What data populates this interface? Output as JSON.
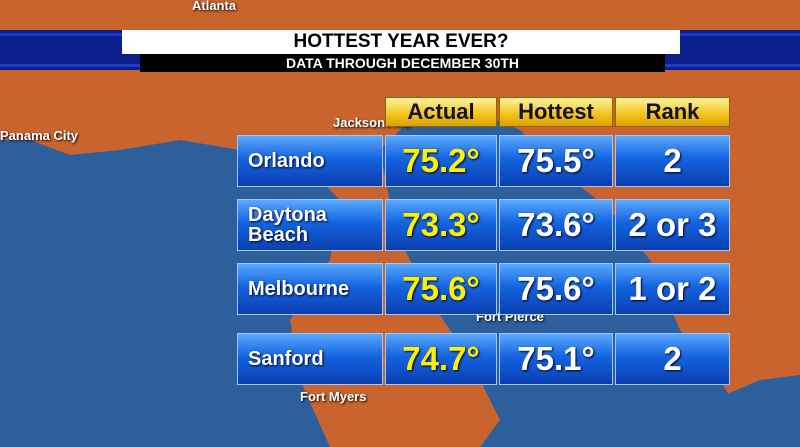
{
  "header": {
    "title": "HOTTEST YEAR EVER?",
    "subtitle": "DATA THROUGH DECEMBER 30TH"
  },
  "map_labels": [
    "Atlanta",
    "Panama City",
    "Jacksonville",
    "Fort Pierce",
    "Fort Myers"
  ],
  "table": {
    "columns": [
      "Actual",
      "Hottest",
      "Rank"
    ],
    "rows": [
      [
        "Orlando",
        "75.2°",
        "75.5°",
        "2"
      ],
      [
        "Daytona Beach",
        "73.3°",
        "73.6°",
        "2 or 3"
      ],
      [
        "Melbourne",
        "75.6°",
        "75.6°",
        "1 or 2"
      ],
      [
        "Sanford",
        "74.7°",
        "75.1°",
        "2"
      ]
    ]
  }
}
